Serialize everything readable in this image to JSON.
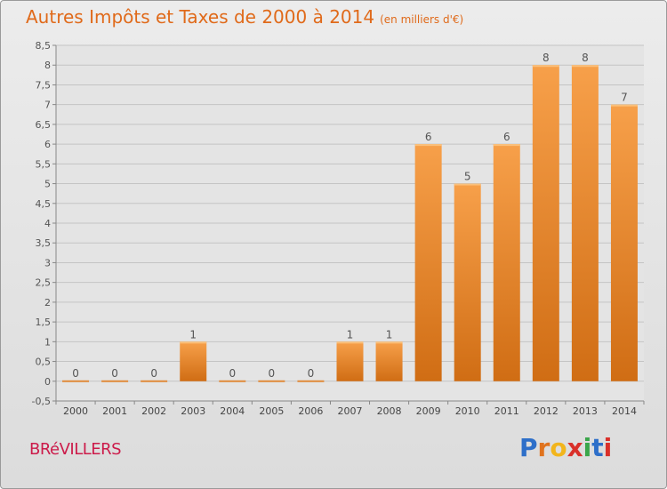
{
  "title": "Autres Impôts et Taxes de 2000 à 2014",
  "subtitle": "(en milliers d'€)",
  "town": "BRéVILLERS",
  "brand": {
    "letters": [
      "P",
      "r",
      "o",
      "x",
      "i",
      "t",
      "i"
    ],
    "colors": [
      "#2e6fc9",
      "#e0731e",
      "#f2b51c",
      "#d9302a",
      "#3aa64a",
      "#2e6fc9",
      "#d9302a"
    ]
  },
  "chart_data": {
    "type": "bar",
    "categories": [
      "2000",
      "2001",
      "2002",
      "2003",
      "2004",
      "2005",
      "2006",
      "2007",
      "2008",
      "2009",
      "2010",
      "2011",
      "2012",
      "2013",
      "2014"
    ],
    "values": [
      0,
      0,
      0,
      1,
      0,
      0,
      0,
      1,
      1,
      6,
      5,
      6,
      8,
      8,
      7
    ],
    "ylim": [
      -0.5,
      8.5
    ],
    "yticks": [
      "-0,5",
      "0",
      "0,5",
      "1",
      "1,5",
      "2",
      "2,5",
      "3",
      "3,5",
      "4",
      "4,5",
      "5",
      "5,5",
      "6",
      "6,5",
      "7",
      "7,5",
      "8",
      "8,5"
    ],
    "grid": true,
    "bar_color_top": "#f7a04a",
    "bar_color_bottom": "#d06d14"
  }
}
